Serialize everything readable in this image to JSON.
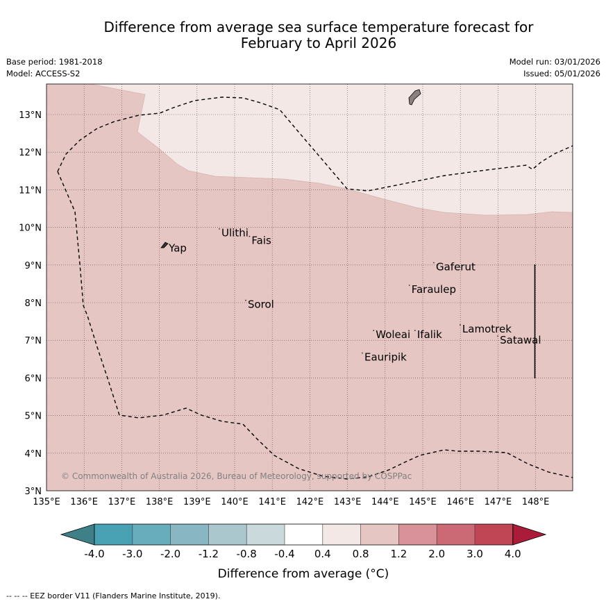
{
  "title": {
    "line1": "Difference from average sea surface temperature forecast for",
    "line2": "February to April 2026"
  },
  "meta": {
    "base_period": "Base period: 1981-2018",
    "model": "Model: ACCESS-S2",
    "model_run": "Model run: 03/01/2026",
    "issued": "Issued: 05/01/2026"
  },
  "map": {
    "lat_labels": [
      "13°N",
      "12°N",
      "11°N",
      "10°N",
      "9°N",
      "8°N",
      "7°N",
      "6°N",
      "5°N",
      "4°N",
      "3°N"
    ],
    "lon_labels": [
      "135°E",
      "136°E",
      "137°E",
      "138°E",
      "139°E",
      "140°E",
      "141°E",
      "142°E",
      "143°E",
      "144°E",
      "145°E",
      "146°E",
      "147°E",
      "148°E"
    ],
    "places": [
      {
        "name": "Yap",
        "lon": 138.25,
        "lat": 9.45
      },
      {
        "name": "Ulithi",
        "lon": 139.65,
        "lat": 9.85
      },
      {
        "name": "Fais",
        "lon": 140.45,
        "lat": 9.65
      },
      {
        "name": "Gaferut",
        "lon": 145.35,
        "lat": 8.95
      },
      {
        "name": "Faraulep",
        "lon": 144.7,
        "lat": 8.35
      },
      {
        "name": "Sorol",
        "lon": 140.35,
        "lat": 7.95
      },
      {
        "name": "Lamotrek",
        "lon": 146.05,
        "lat": 7.3
      },
      {
        "name": "Woleai",
        "lon": 143.75,
        "lat": 7.15
      },
      {
        "name": "Ifalik",
        "lon": 144.85,
        "lat": 7.15
      },
      {
        "name": "Satawal",
        "lon": 147.05,
        "lat": 7.0
      },
      {
        "name": "Eauripik",
        "lon": 143.45,
        "lat": 6.55
      }
    ],
    "watermark": "© Commonwealth of Australia 2026, Bureau of Meteorology, supported by COSPPac",
    "zone_colors": {
      "band_0_4_0_8": "#f4e8e7",
      "band_0_8_1_2": "#e6c6c2"
    }
  },
  "colorbar": {
    "label": "Difference from average (°C)",
    "ticks": [
      "-4.0",
      "-3.0",
      "-2.0",
      "-1.2",
      "-0.8",
      "-0.4",
      "0.4",
      "0.8",
      "1.2",
      "2.0",
      "3.0",
      "4.0"
    ],
    "colors": [
      "#3e7f88",
      "#48a2b4",
      "#68adbc",
      "#88b6c3",
      "#a9c7cd",
      "#c9d9dc",
      "#ffffff",
      "#f4e8e7",
      "#e6c6c2",
      "#d9929a",
      "#cb6a75",
      "#c04555",
      "#aa1c3a"
    ]
  },
  "footnote": "--  --  -- EEZ border V11 (Flanders Marine Institute, 2019)."
}
